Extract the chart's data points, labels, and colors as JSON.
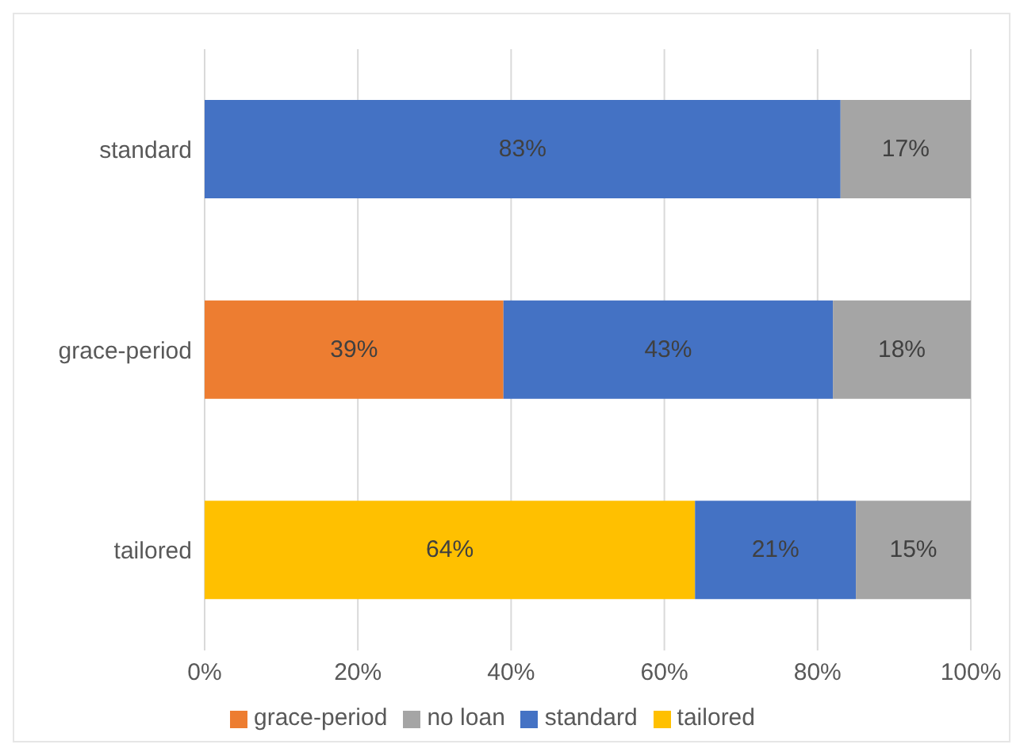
{
  "chart_data": {
    "type": "bar",
    "orientation": "horizontal",
    "stacked": true,
    "categories": [
      "standard",
      "grace-period",
      "tailored"
    ],
    "series": [
      {
        "name": "tailored",
        "color": "#ffc000",
        "values": [
          null,
          null,
          64
        ],
        "value_labels": [
          null,
          null,
          "64%"
        ]
      },
      {
        "name": "grace-period",
        "color": "#ed7d31",
        "values": [
          null,
          39,
          null
        ],
        "value_labels": [
          null,
          "39%",
          null
        ]
      },
      {
        "name": "standard",
        "color": "#4472c4",
        "values": [
          83,
          43,
          21
        ],
        "value_labels": [
          "83%",
          "43%",
          "21%"
        ]
      },
      {
        "name": "no loan",
        "color": "#a5a5a5",
        "values": [
          17,
          18,
          15
        ],
        "value_labels": [
          "17%",
          "18%",
          "15%"
        ]
      }
    ],
    "xlim": [
      0,
      100
    ],
    "xticks": [
      {
        "value": 0,
        "label": "0%"
      },
      {
        "value": 20,
        "label": "20%"
      },
      {
        "value": 40,
        "label": "40%"
      },
      {
        "value": 60,
        "label": "60%"
      },
      {
        "value": 80,
        "label": "80%"
      },
      {
        "value": 100,
        "label": "100%"
      }
    ],
    "grid": "x",
    "legend": "bottom"
  }
}
